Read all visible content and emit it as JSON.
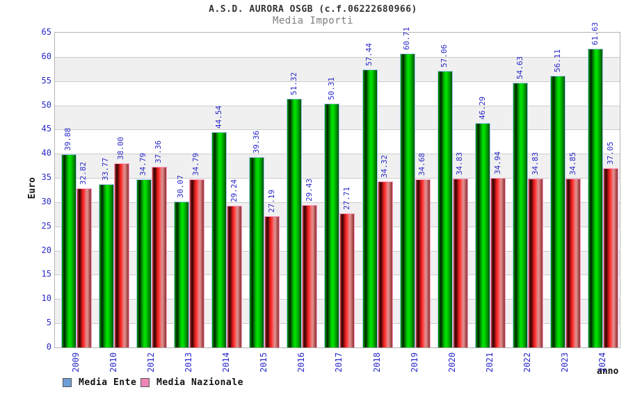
{
  "header": {
    "title": "A.S.D. AURORA OSGB (c.f.06222680966)",
    "subtitle": "Media Importi"
  },
  "chart_data": {
    "type": "bar",
    "title": "A.S.D. AURORA OSGB (c.f.06222680966)",
    "subtitle": "Media Importi",
    "xlabel": "anno",
    "ylabel": "Euro",
    "ylim": [
      0,
      65
    ],
    "ytick_step": 5,
    "yticks": [
      0,
      5,
      10,
      15,
      20,
      25,
      30,
      35,
      40,
      45,
      50,
      55,
      60,
      65
    ],
    "grid": "alternating-horizontal-bands",
    "legend_position": "bottom-left",
    "value_labels": "rotated-90-above-bars-two-decimals",
    "categories": [
      "2009",
      "2010",
      "2012",
      "2013",
      "2014",
      "2015",
      "2016",
      "2017",
      "2018",
      "2019",
      "2020",
      "2021",
      "2022",
      "2023",
      "2024"
    ],
    "series": [
      {
        "name": "Media Ente",
        "legend_color": "#6e9ed8",
        "bar_style": "green-gradient",
        "values": [
          39.88,
          33.77,
          34.79,
          30.07,
          44.54,
          39.36,
          51.32,
          50.31,
          57.44,
          60.71,
          57.06,
          46.29,
          54.63,
          56.11,
          61.63
        ]
      },
      {
        "name": "Media Nazionale",
        "legend_color": "#ee85b8",
        "bar_style": "red-gradient",
        "values": [
          32.82,
          38.0,
          37.36,
          34.79,
          29.24,
          27.19,
          29.43,
          27.71,
          34.32,
          34.68,
          34.83,
          34.94,
          34.83,
          34.85,
          37.05
        ]
      }
    ],
    "colors": {
      "tick_labels": "#2828c8",
      "value_labels": "#2828c8",
      "band_fill": "#f0f0f0",
      "gridline": "#cccccc",
      "plot_border": "#b3b3b3",
      "title": "#333333",
      "subtitle": "#7d7d7d"
    }
  }
}
